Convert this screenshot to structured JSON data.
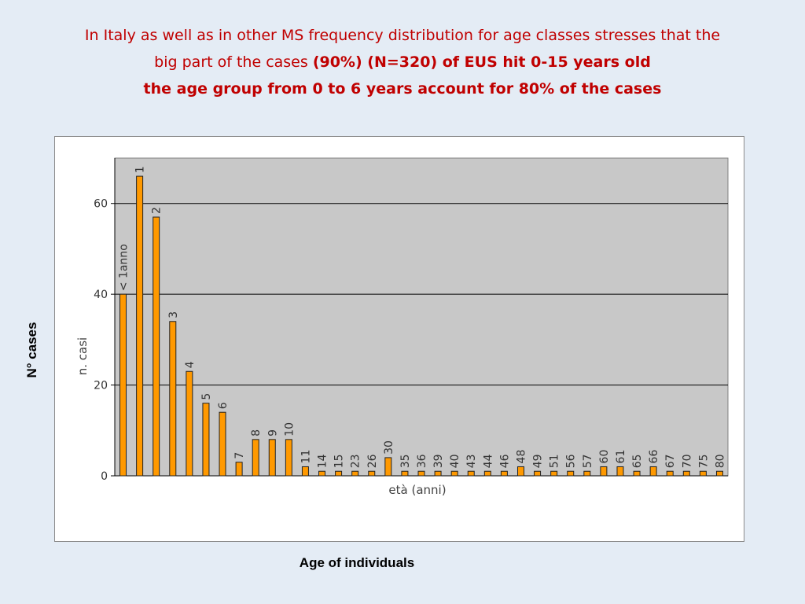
{
  "slide": {
    "title_line1": "In Italy as well as in other MS frequency distribution for age classes stresses that the",
    "title_line2_pre": "big part of the cases ",
    "title_line2_bold": "(90%) (N=320)  of EUS hit 0-15 years old",
    "title_line3": "the age group from 0 to 6 years account for 80% of the cases",
    "y_axis_caption": "N° cases",
    "x_axis_caption": "Age of individuals"
  },
  "chart_data": {
    "type": "bar",
    "xlabel": "età (anni)",
    "ylabel": "n. casi",
    "ylim": [
      0,
      70
    ],
    "yticks": [
      0,
      20,
      40,
      60
    ],
    "grid": true,
    "colors": {
      "bar": "#ff9900",
      "bar_stroke": "#222222",
      "plot_bg": "#c8c8c8",
      "title": "#c00000"
    },
    "categories": [
      "< 1anno",
      "1",
      "2",
      "3",
      "4",
      "5",
      "6",
      "7",
      "8",
      "9",
      "10",
      "11",
      "14",
      "15",
      "23",
      "26",
      "30",
      "35",
      "36",
      "39",
      "40",
      "43",
      "44",
      "46",
      "48",
      "49",
      "51",
      "56",
      "57",
      "60",
      "61",
      "65",
      "66",
      "67",
      "70",
      "75",
      "80"
    ],
    "values": [
      40,
      66,
      57,
      34,
      23,
      16,
      14,
      3,
      8,
      8,
      8,
      2,
      1,
      1,
      1,
      1,
      4,
      1,
      1,
      1,
      1,
      1,
      1,
      1,
      2,
      1,
      1,
      1,
      1,
      2,
      2,
      1,
      2,
      1,
      1,
      1,
      1
    ]
  }
}
